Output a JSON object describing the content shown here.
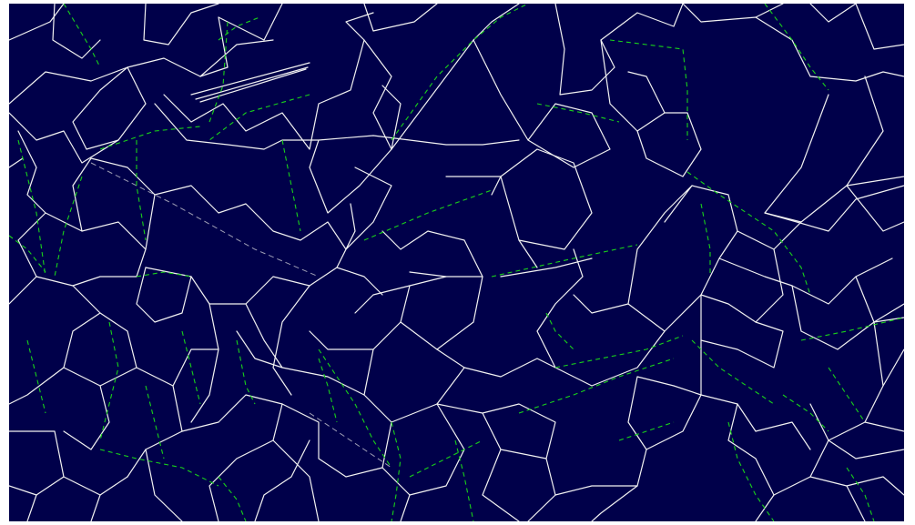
{
  "view": {
    "background_color": "#00004a",
    "bond_color": "#f2f2f2",
    "hbond_color": "#19d219"
  }
}
